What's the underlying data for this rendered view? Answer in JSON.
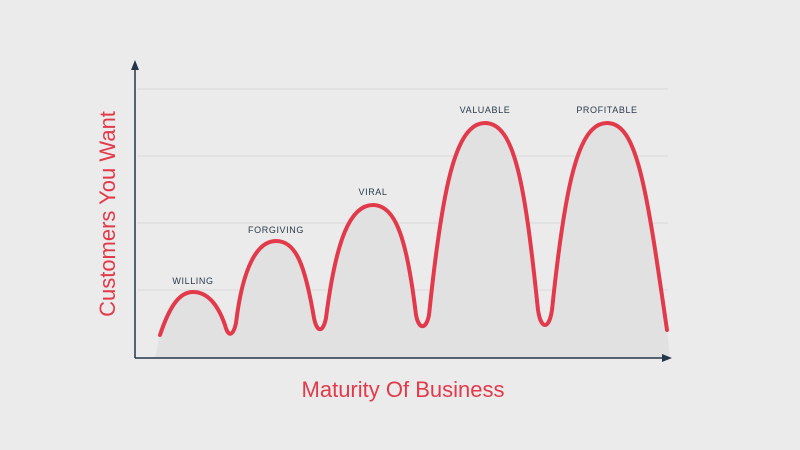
{
  "diagram": {
    "x_axis_title": "Maturity Of Business",
    "y_axis_title": "Customers You Want",
    "stages": [
      {
        "label": "WILLING"
      },
      {
        "label": "FORGIVING"
      },
      {
        "label": "VIRAL"
      },
      {
        "label": "VALUABLE"
      },
      {
        "label": "PROFITABLE"
      }
    ],
    "colors": {
      "curve": "#e23a4b",
      "fill": "#e1e1e1",
      "axis": "#23364a",
      "grid": "#dadada",
      "background": "#ebebeb"
    }
  }
}
